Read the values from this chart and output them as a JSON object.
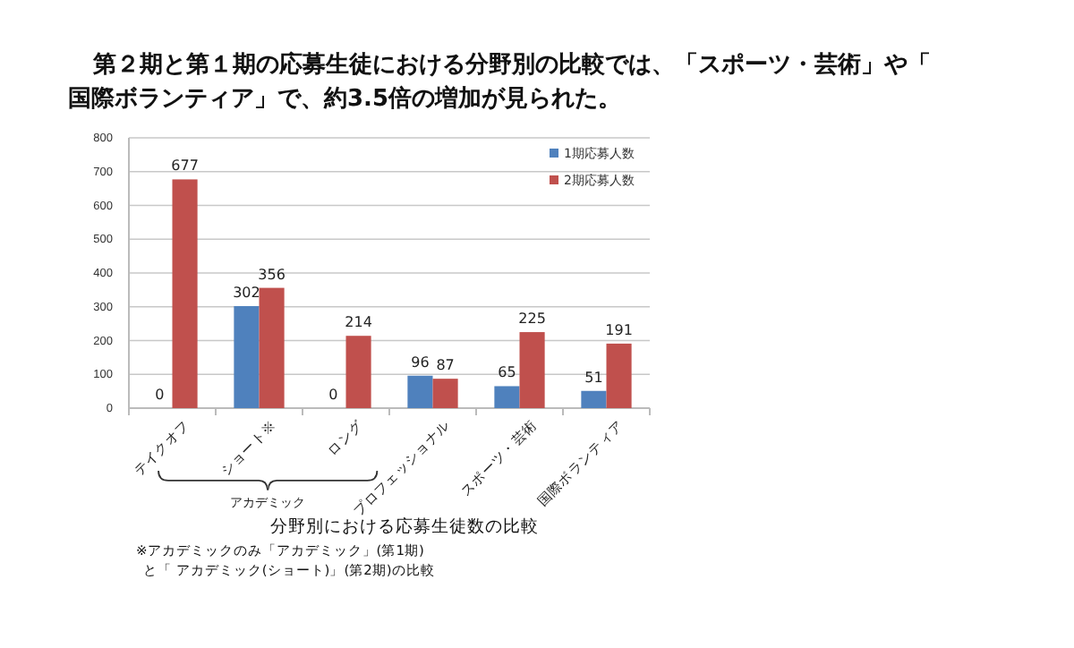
{
  "chart_data": {
    "type": "bar",
    "title": "第２期と第１期の応募生徒における分野別の比較では、「スポーツ・芸術」や「国際ボランティア」で、約3.5倍の増加が見られた。",
    "subtitle": "分野別における応募生徒数の比較",
    "categories": [
      "テイクオフ",
      "ショート※",
      "ロング",
      "プロフェッショナル",
      "スポーツ・芸術",
      "国際ボランティア"
    ],
    "series": [
      {
        "name": "1期応募人数",
        "color": "#4f81bd",
        "values": [
          0,
          302,
          0,
          96,
          65,
          51
        ]
      },
      {
        "name": "2期応募人数",
        "color": "#c0504d",
        "values": [
          677,
          356,
          214,
          87,
          225,
          191
        ]
      }
    ],
    "ylim": [
      0,
      800
    ],
    "yticks": [
      0,
      100,
      200,
      300,
      400,
      500,
      600,
      700,
      800
    ],
    "grid": "y",
    "legend": "top right",
    "data_labels": true,
    "annotations": [
      "アカデミック",
      "※アカデミックのみ「アカデミック」(第1期)と「 アカデミック(ショート)」(第2期)の比較"
    ]
  }
}
